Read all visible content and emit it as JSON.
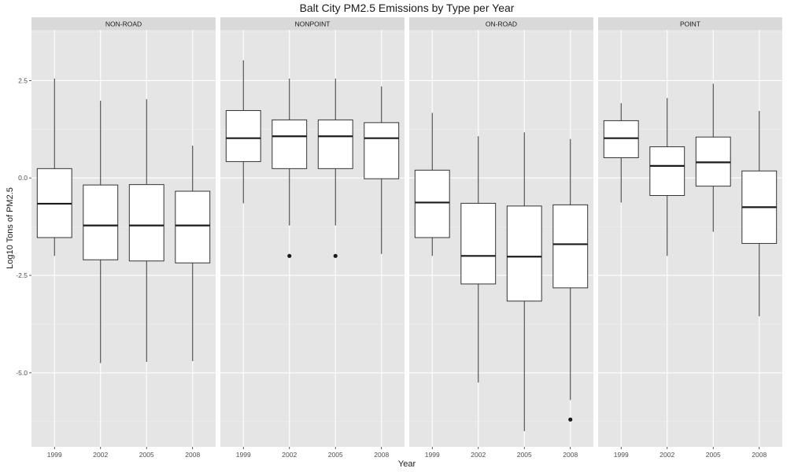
{
  "chart_data": {
    "type": "boxplot",
    "title": "Balt City PM2.5 Emissions by Type per Year",
    "xlabel": "Year",
    "ylabel": "Log10 Tons of PM2.5",
    "categories": [
      "1999",
      "2002",
      "2005",
      "2008"
    ],
    "y_ticks": [
      2.5,
      0.0,
      -2.5,
      -5.0
    ],
    "y_tick_labels": [
      "2.5",
      "0.0",
      "-2.5",
      "-5.0"
    ],
    "ylim": [
      -6.9,
      3.8
    ],
    "grid": true,
    "colors": {
      "panel_bg": "#e5e5e5",
      "strip_bg": "#d9d9d9",
      "grid_major": "#ffffff",
      "box_fill": "#ffffff",
      "box_line": "#333333"
    },
    "panels": [
      {
        "name": "NON-ROAD",
        "boxes": [
          {
            "year": "1999",
            "lower_whisker": -2.0,
            "q1": -1.53,
            "median": -0.66,
            "q3": 0.24,
            "upper_whisker": 2.55,
            "outliers": []
          },
          {
            "year": "2002",
            "lower_whisker": -4.75,
            "q1": -2.1,
            "median": -1.22,
            "q3": -0.18,
            "upper_whisker": 1.98,
            "outliers": []
          },
          {
            "year": "2005",
            "lower_whisker": -4.72,
            "q1": -2.13,
            "median": -1.22,
            "q3": -0.17,
            "upper_whisker": 2.02,
            "outliers": []
          },
          {
            "year": "2008",
            "lower_whisker": -4.7,
            "q1": -2.18,
            "median": -1.22,
            "q3": -0.34,
            "upper_whisker": 0.83,
            "outliers": []
          }
        ]
      },
      {
        "name": "NONPOINT",
        "boxes": [
          {
            "year": "1999",
            "lower_whisker": -0.65,
            "q1": 0.42,
            "median": 1.02,
            "q3": 1.73,
            "upper_whisker": 3.02,
            "outliers": []
          },
          {
            "year": "2002",
            "lower_whisker": -1.22,
            "q1": 0.24,
            "median": 1.07,
            "q3": 1.49,
            "upper_whisker": 2.55,
            "outliers": [
              -2.0
            ]
          },
          {
            "year": "2005",
            "lower_whisker": -1.22,
            "q1": 0.24,
            "median": 1.07,
            "q3": 1.49,
            "upper_whisker": 2.55,
            "outliers": [
              -2.0
            ]
          },
          {
            "year": "2008",
            "lower_whisker": -1.95,
            "q1": -0.02,
            "median": 1.02,
            "q3": 1.42,
            "upper_whisker": 2.35,
            "outliers": []
          }
        ]
      },
      {
        "name": "ON-ROAD",
        "boxes": [
          {
            "year": "1999",
            "lower_whisker": -2.0,
            "q1": -1.53,
            "median": -0.63,
            "q3": 0.2,
            "upper_whisker": 1.67,
            "outliers": []
          },
          {
            "year": "2002",
            "lower_whisker": -5.25,
            "q1": -2.72,
            "median": -2.0,
            "q3": -0.65,
            "upper_whisker": 1.07,
            "outliers": []
          },
          {
            "year": "2005",
            "lower_whisker": -6.5,
            "q1": -3.16,
            "median": -2.02,
            "q3": -0.72,
            "upper_whisker": 1.17,
            "outliers": []
          },
          {
            "year": "2008",
            "lower_whisker": -5.7,
            "q1": -2.82,
            "median": -1.7,
            "q3": -0.69,
            "upper_whisker": 1.0,
            "outliers": [
              -6.2
            ]
          }
        ]
      },
      {
        "name": "POINT",
        "boxes": [
          {
            "year": "1999",
            "lower_whisker": -0.63,
            "q1": 0.52,
            "median": 1.02,
            "q3": 1.47,
            "upper_whisker": 1.92,
            "outliers": []
          },
          {
            "year": "2002",
            "lower_whisker": -2.0,
            "q1": -0.45,
            "median": 0.31,
            "q3": 0.8,
            "upper_whisker": 2.05,
            "outliers": []
          },
          {
            "year": "2005",
            "lower_whisker": -1.38,
            "q1": -0.21,
            "median": 0.4,
            "q3": 1.05,
            "upper_whisker": 2.42,
            "outliers": []
          },
          {
            "year": "2008",
            "lower_whisker": -3.55,
            "q1": -1.68,
            "median": -0.75,
            "q3": 0.18,
            "upper_whisker": 1.72,
            "outliers": []
          }
        ]
      }
    ]
  }
}
